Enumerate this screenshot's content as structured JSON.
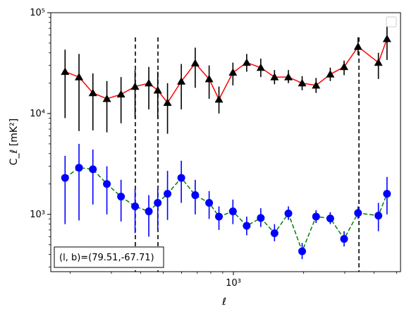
{
  "chart_data": {
    "type": "line",
    "xscale": "log",
    "yscale": "log",
    "xlabel": "ℓ",
    "ylabel": "C_ℓ  [mK²]",
    "xlim": [
      165,
      5200
    ],
    "ylim": [
      270,
      100000
    ],
    "x_ticks": [
      {
        "value": 1000,
        "label": "10³"
      }
    ],
    "y_ticks": [
      {
        "value": 1000,
        "label": "10³"
      },
      {
        "value": 10000,
        "label": "10⁴"
      },
      {
        "value": 100000,
        "label": "10⁵"
      }
    ],
    "grid": false,
    "legend": "empty box, top-right",
    "vlines": [
      380,
      475,
      3450
    ],
    "annotation": "(l, b)=(79.51,-67.71)",
    "series": [
      {
        "marker": "triangle",
        "line_color": "#ff0000",
        "line_style": "solid",
        "marker_color": "#000000",
        "errorbar_color": "#000000",
        "points": [
          {
            "x": 190,
            "y": 26000,
            "lo": 9000,
            "hi": 43000
          },
          {
            "x": 218,
            "y": 23000,
            "lo": 6700,
            "hi": 39000
          },
          {
            "x": 250,
            "y": 16000,
            "lo": 6800,
            "hi": 25000
          },
          {
            "x": 287,
            "y": 14000,
            "lo": 6500,
            "hi": 21000
          },
          {
            "x": 330,
            "y": 15500,
            "lo": 8000,
            "hi": 23000
          },
          {
            "x": 379,
            "y": 18500,
            "lo": 9000,
            "hi": 27000
          },
          {
            "x": 434,
            "y": 20000,
            "lo": 11000,
            "hi": 29000
          },
          {
            "x": 474,
            "y": 17000,
            "lo": 9000,
            "hi": 26000
          },
          {
            "x": 522,
            "y": 12800,
            "lo": 6300,
            "hi": 20000
          },
          {
            "x": 598,
            "y": 20800,
            "lo": 11000,
            "hi": 31000
          },
          {
            "x": 686,
            "y": 31500,
            "lo": 18000,
            "hi": 45000
          },
          {
            "x": 787,
            "y": 22000,
            "lo": 14000,
            "hi": 30000
          },
          {
            "x": 867,
            "y": 13800,
            "lo": 10000,
            "hi": 18500
          },
          {
            "x": 995,
            "y": 25500,
            "lo": 19000,
            "hi": 32000
          },
          {
            "x": 1140,
            "y": 32000,
            "lo": 26000,
            "hi": 39000
          },
          {
            "x": 1310,
            "y": 28500,
            "lo": 23000,
            "hi": 35000
          },
          {
            "x": 1500,
            "y": 23000,
            "lo": 19500,
            "hi": 27000
          },
          {
            "x": 1720,
            "y": 23000,
            "lo": 20000,
            "hi": 27000
          },
          {
            "x": 1970,
            "y": 20000,
            "lo": 17000,
            "hi": 23500
          },
          {
            "x": 2260,
            "y": 19000,
            "lo": 16000,
            "hi": 22500
          },
          {
            "x": 2600,
            "y": 24500,
            "lo": 21000,
            "hi": 28500
          },
          {
            "x": 2980,
            "y": 29000,
            "lo": 24000,
            "hi": 33500
          },
          {
            "x": 3420,
            "y": 46000,
            "lo": 38000,
            "hi": 57000
          },
          {
            "x": 4180,
            "y": 32000,
            "lo": 22000,
            "hi": 40000
          },
          {
            "x": 4550,
            "y": 55000,
            "lo": 34000,
            "hi": 78000
          }
        ]
      },
      {
        "marker": "circle",
        "line_color": "#008000",
        "line_style": "dashed",
        "marker_color": "#0000ff",
        "errorbar_color": "#0000ff",
        "points": [
          {
            "x": 190,
            "y": 2300,
            "lo": 800,
            "hi": 3800
          },
          {
            "x": 218,
            "y": 2900,
            "lo": 870,
            "hi": 5000
          },
          {
            "x": 250,
            "y": 2800,
            "lo": 1250,
            "hi": 4400
          },
          {
            "x": 287,
            "y": 2000,
            "lo": 1000,
            "hi": 3000
          },
          {
            "x": 330,
            "y": 1500,
            "lo": 850,
            "hi": 2200
          },
          {
            "x": 379,
            "y": 1200,
            "lo": 650,
            "hi": 1800
          },
          {
            "x": 434,
            "y": 1070,
            "lo": 600,
            "hi": 1550
          },
          {
            "x": 474,
            "y": 1300,
            "lo": 700,
            "hi": 1800
          },
          {
            "x": 522,
            "y": 1600,
            "lo": 880,
            "hi": 2700
          },
          {
            "x": 598,
            "y": 2300,
            "lo": 1300,
            "hi": 3400
          },
          {
            "x": 686,
            "y": 1550,
            "lo": 1000,
            "hi": 2200
          },
          {
            "x": 787,
            "y": 1300,
            "lo": 900,
            "hi": 1700
          },
          {
            "x": 867,
            "y": 950,
            "lo": 700,
            "hi": 1200
          },
          {
            "x": 995,
            "y": 1070,
            "lo": 800,
            "hi": 1400
          },
          {
            "x": 1140,
            "y": 770,
            "lo": 620,
            "hi": 950
          },
          {
            "x": 1310,
            "y": 920,
            "lo": 750,
            "hi": 1150
          },
          {
            "x": 1500,
            "y": 650,
            "lo": 540,
            "hi": 800
          },
          {
            "x": 1720,
            "y": 1020,
            "lo": 880,
            "hi": 1200
          },
          {
            "x": 1970,
            "y": 430,
            "lo": 360,
            "hi": 520
          },
          {
            "x": 2260,
            "y": 950,
            "lo": 820,
            "hi": 1100
          },
          {
            "x": 2600,
            "y": 910,
            "lo": 800,
            "hi": 1050
          },
          {
            "x": 2980,
            "y": 570,
            "lo": 480,
            "hi": 680
          },
          {
            "x": 3420,
            "y": 1030,
            "lo": 900,
            "hi": 1200
          },
          {
            "x": 4180,
            "y": 970,
            "lo": 680,
            "hi": 1300
          },
          {
            "x": 4550,
            "y": 1600,
            "lo": 1000,
            "hi": 2350
          }
        ]
      }
    ]
  }
}
